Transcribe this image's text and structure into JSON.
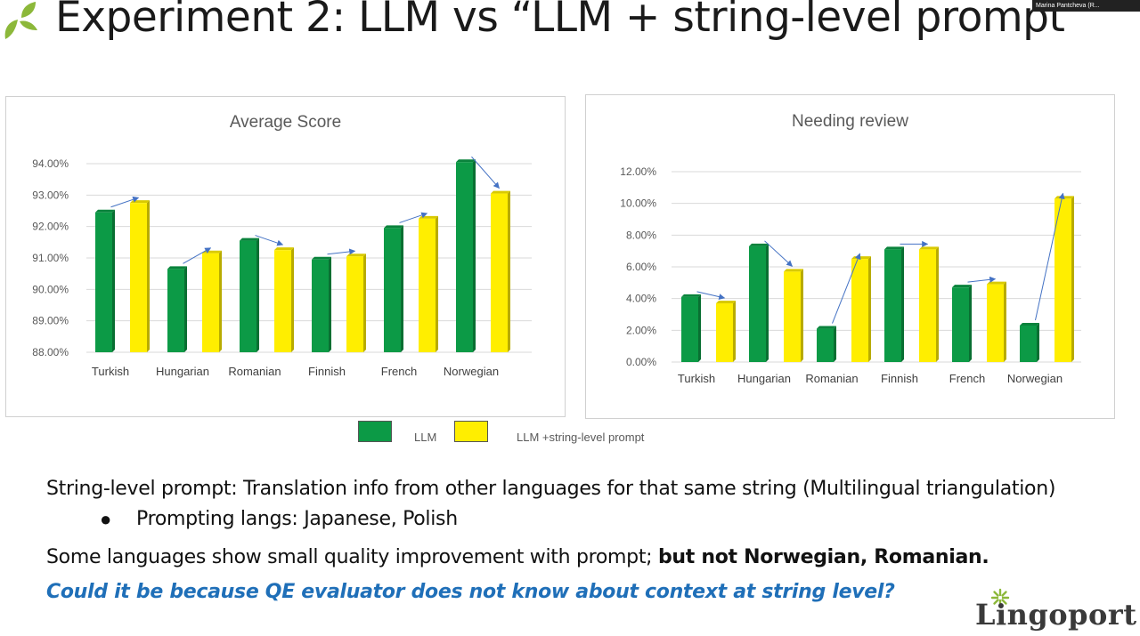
{
  "slide": {
    "title": "Experiment 2: LLM vs “LLM + string-level prompt”",
    "presenter": "Marina Pantcheva (R...",
    "text1": "String-level prompt:  Translation info from other languages for that same string (Multilingual triangulation)",
    "text2": "Prompting langs: Japanese, Polish",
    "text3_plain": "Some languages show small quality improvement with prompt; ",
    "text3_bold": "but not Norwegian, Romanian.",
    "text4": "Could it be because QE evaluator does not know about context at string level?",
    "logo": "Lingoport"
  },
  "legend": {
    "llm": "LLM",
    "prompt": "LLM +string-level prompt"
  },
  "colors": {
    "llm": "#0c9a46",
    "prompt": "#ffee00",
    "arrow": "#4472c4"
  },
  "chart_data": [
    {
      "type": "bar",
      "title": "Average Score",
      "categories": [
        "Turkish",
        "Hungarian",
        "Romanian",
        "Finnish",
        "French",
        "Norwegian"
      ],
      "series": [
        {
          "name": "LLM",
          "values": [
            92.45,
            90.65,
            91.55,
            90.95,
            91.95,
            94.05
          ]
        },
        {
          "name": "LLM +string-level prompt",
          "values": [
            92.75,
            91.15,
            91.25,
            91.05,
            92.25,
            93.05
          ]
        }
      ],
      "ylim": [
        88,
        94
      ],
      "yticks": [
        "88.00%",
        "89.00%",
        "90.00%",
        "91.00%",
        "92.00%",
        "93.00%",
        "94.00%"
      ],
      "grid": true
    },
    {
      "type": "bar",
      "title": "Needing review",
      "categories": [
        "Turkish",
        "Hungarian",
        "Romanian",
        "Finnish",
        "French",
        "Norwegian"
      ],
      "series": [
        {
          "name": "LLM",
          "values": [
            4.1,
            7.3,
            2.1,
            7.1,
            4.7,
            2.3
          ]
        },
        {
          "name": "LLM +string-level prompt",
          "values": [
            3.7,
            5.7,
            6.5,
            7.1,
            4.9,
            10.3
          ]
        }
      ],
      "ylim": [
        0,
        12
      ],
      "yticks": [
        "0.00%",
        "2.00%",
        "4.00%",
        "6.00%",
        "8.00%",
        "10.00%",
        "12.00%"
      ],
      "grid": true
    }
  ]
}
